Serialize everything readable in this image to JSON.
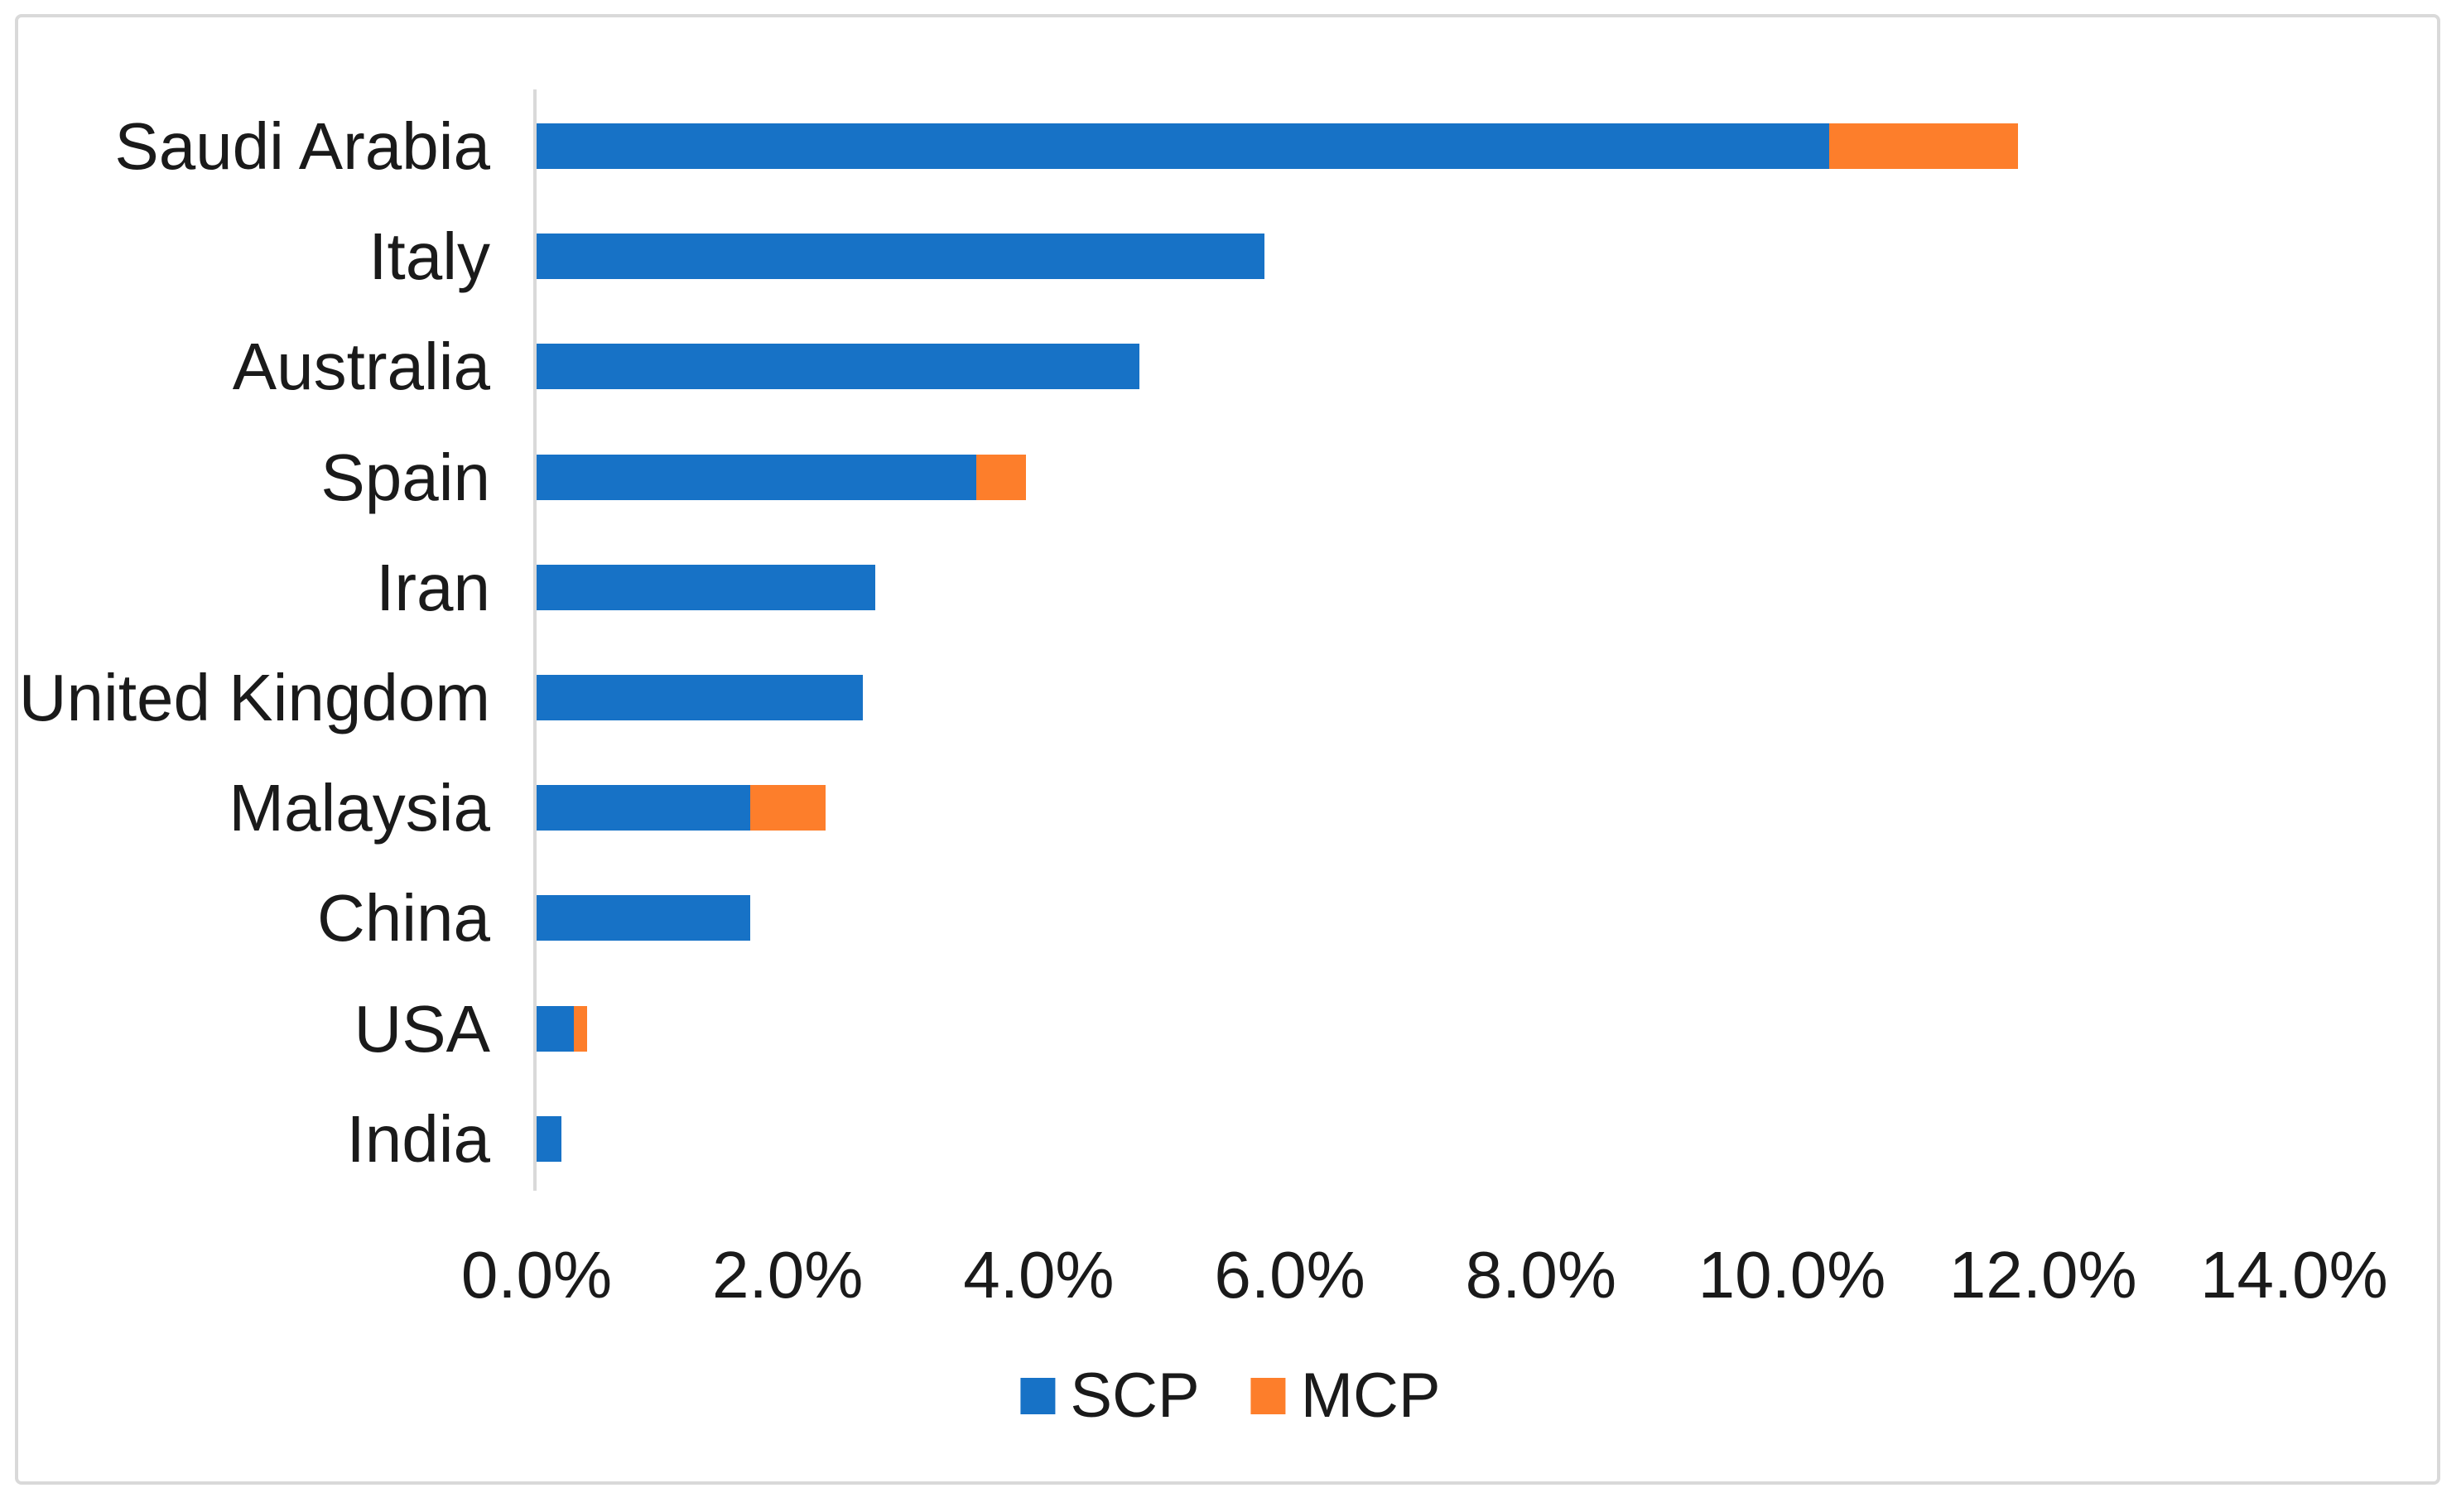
{
  "chart_data": {
    "type": "bar",
    "orientation": "horizontal",
    "stacked": true,
    "title": "",
    "xlabel": "",
    "ylabel": "",
    "categories": [
      "Saudi Arabia",
      "Italy",
      "Australia",
      "Spain",
      "Iran",
      "United Kingdom",
      "Malaysia",
      "China",
      "USA",
      "India"
    ],
    "series": [
      {
        "name": "SCP",
        "color": "#1772c6",
        "values": [
          10.3,
          5.8,
          4.8,
          3.5,
          2.7,
          2.6,
          1.7,
          1.7,
          0.3,
          0.2
        ]
      },
      {
        "name": "MCP",
        "color": "#fd7e2b",
        "values": [
          1.5,
          0,
          0,
          0.4,
          0,
          0,
          0.6,
          0,
          0.1,
          0
        ]
      }
    ],
    "xlim": [
      0,
      14
    ],
    "x_tick_step": 2,
    "x_tick_labels": [
      "0.0%",
      "2.0%",
      "4.0%",
      "6.0%",
      "8.0%",
      "10.0%",
      "12.0%",
      "14.0%"
    ],
    "grid": false,
    "legend_position": "bottom"
  },
  "colors": {
    "scp": "#1772c6",
    "mcp": "#fd7e2b",
    "axis_line": "#d9d9d9",
    "frame_border": "#d9d9d9",
    "text": "#1a1a1a",
    "background": "#ffffff"
  }
}
